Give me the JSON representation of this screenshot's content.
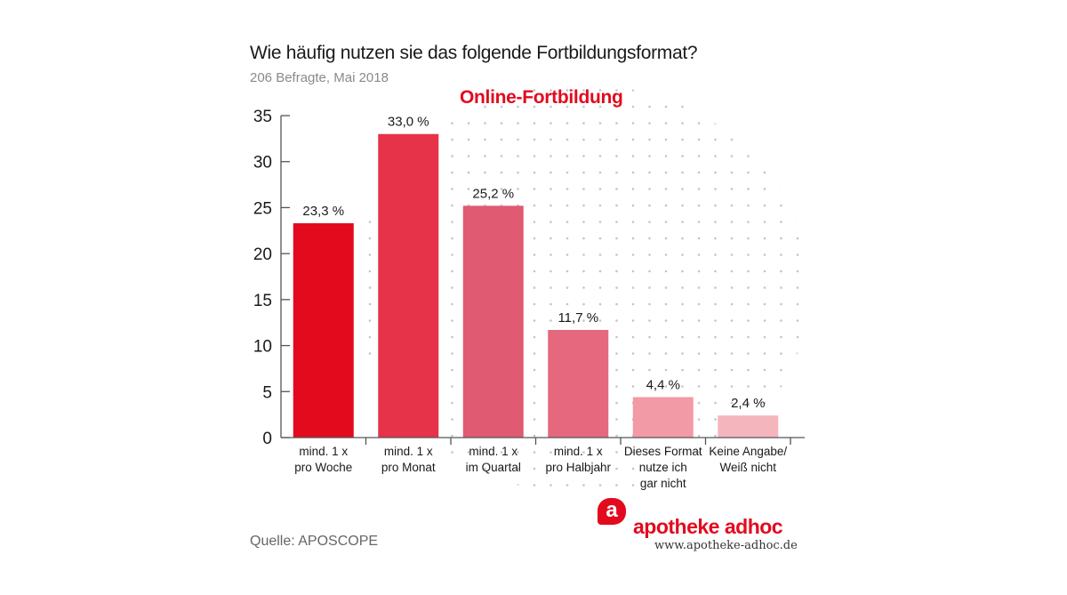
{
  "header": {
    "title": "Wie häufig nutzen sie das folgende Fortbildungsformat?",
    "subtitle": "206 Befragte, Mai 2018"
  },
  "footer": {
    "source": "Quelle: APOSCOPE",
    "brand": "apotheke adhoc",
    "logo_letter": "a",
    "url": "www.apotheke-adhoc.de"
  },
  "chart_data": {
    "type": "bar",
    "title": "Wie häufig nutzen sie das folgende Fortbildungsformat?",
    "subtitle": "Online-Fortbildung",
    "categories": [
      [
        "mind. 1 x",
        "pro Woche"
      ],
      [
        "mind. 1 x",
        "pro Monat"
      ],
      [
        "mind. 1 x",
        "im Quartal"
      ],
      [
        "mind. 1 x",
        "pro Halbjahr"
      ],
      [
        "Dieses Format",
        "nutze ich",
        "gar nicht"
      ],
      [
        "Keine Angabe/",
        "Weiß nicht"
      ]
    ],
    "values": [
      23.3,
      33.0,
      25.2,
      11.7,
      4.4,
      2.4
    ],
    "value_labels": [
      "23,3 %",
      "33,0 %",
      "25,2 %",
      "11,7 %",
      "4,4 %",
      "2,4 %"
    ],
    "colors": [
      "#e30a1e",
      "#e6334a",
      "#e05a72",
      "#e5687e",
      "#f29aa5",
      "#f5b5bd"
    ],
    "yticks": [
      0,
      5,
      10,
      15,
      20,
      25,
      30,
      35
    ],
    "ylim": [
      0,
      35
    ],
    "xlabel": "",
    "ylabel": "",
    "grid": false
  }
}
